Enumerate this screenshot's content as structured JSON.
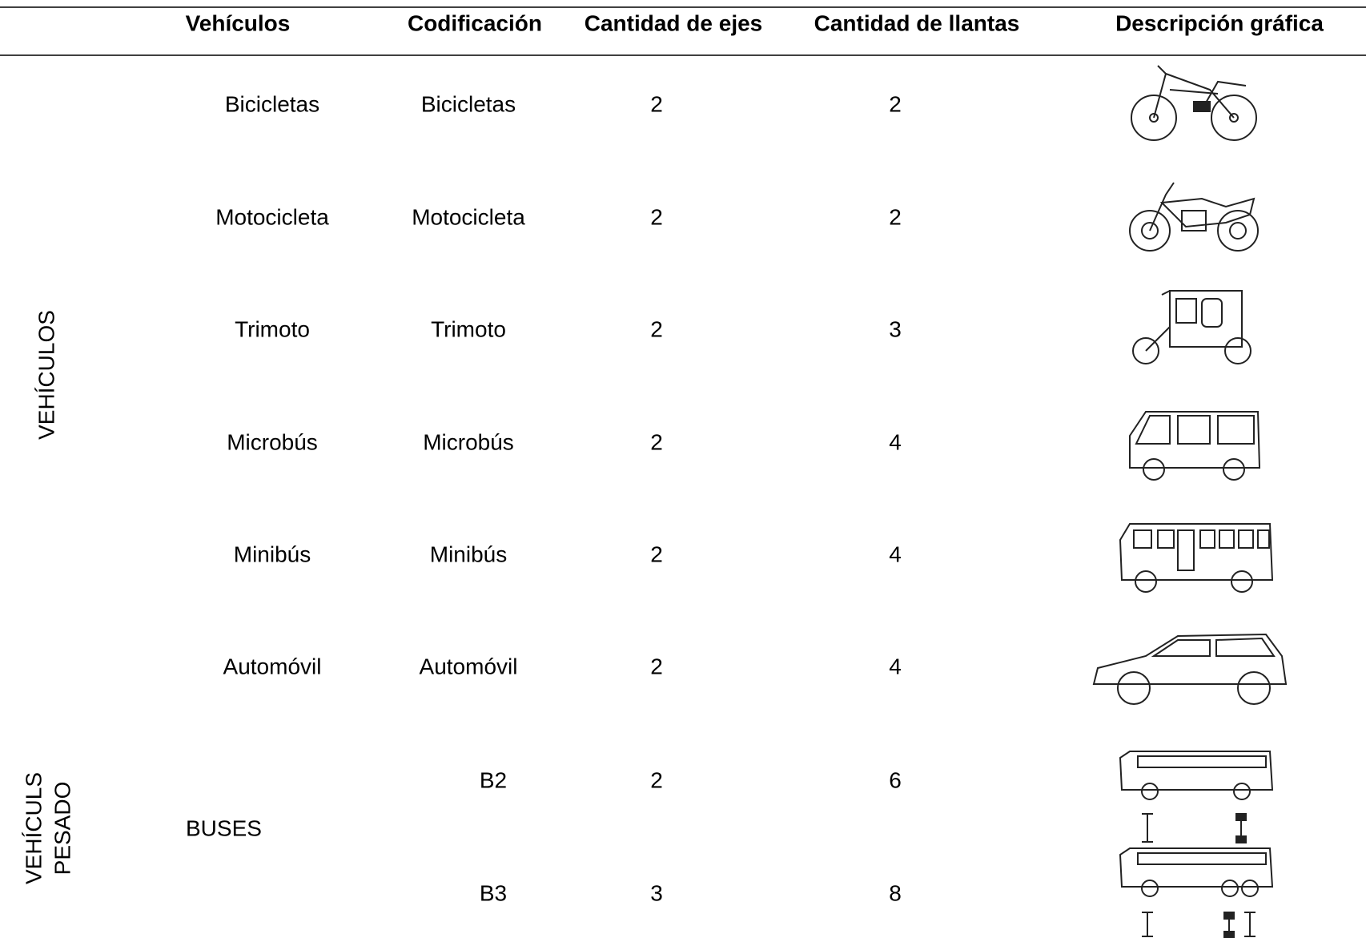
{
  "header": {
    "columns": [
      "Vehículos",
      "Codificación",
      "Cantidad de ejes",
      "Cantidad de llantas",
      "Descripción gráfica"
    ]
  },
  "groups": [
    {
      "label_lines": [
        "VEHÍCULOS"
      ]
    },
    {
      "label_lines": [
        "VEHÍCULS",
        "PESADO"
      ]
    }
  ],
  "subgroup": "BUSES",
  "rows": [
    {
      "vehicle": "Bicicletas",
      "code": "Bicicletas",
      "axles": 2,
      "tires": 2
    },
    {
      "vehicle": "Motocicleta",
      "code": "Motocicleta",
      "axles": 2,
      "tires": 2
    },
    {
      "vehicle": "Trimoto",
      "code": "Trimoto",
      "axles": 2,
      "tires": 3
    },
    {
      "vehicle": "Microbús",
      "code": "Microbús",
      "axles": 2,
      "tires": 4
    },
    {
      "vehicle": "Minibús",
      "code": "Minibús",
      "axles": 2,
      "tires": 4
    },
    {
      "vehicle": "Automóvil",
      "code": "Automóvil",
      "axles": 2,
      "tires": 4
    },
    {
      "code": "B2",
      "axles": 2,
      "tires": 6
    },
    {
      "code": "B3",
      "axles": 3,
      "tires": 8
    }
  ]
}
